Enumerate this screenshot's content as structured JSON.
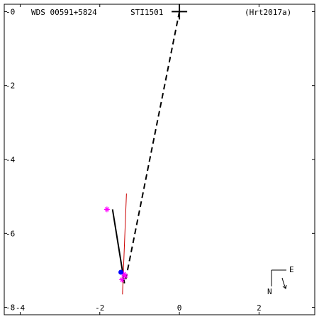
{
  "header": {
    "wds": "WDS 00591+5824",
    "disc": "STI1501",
    "ref": "(Hrt2017a)"
  },
  "compass": {
    "east": "E",
    "north": "N"
  },
  "chart_data": {
    "type": "scatter",
    "title": "",
    "xlabel": "",
    "ylabel": "",
    "xlim": [
      -4.4,
      3.4
    ],
    "ylim": [
      -8.2,
      0.2
    ],
    "x_ticks": [
      -4,
      -2,
      0,
      2
    ],
    "y_ticks": [
      0,
      -2,
      -4,
      -6,
      -8
    ],
    "x_tick_labels": [
      "-4",
      "-2",
      "0",
      "2"
    ],
    "y_tick_labels": [
      "-0",
      "-2",
      "-4",
      "-6",
      "-8"
    ],
    "grid": false,
    "primary": {
      "x": 0,
      "y": 0,
      "marker": "plus"
    },
    "dashed_line": {
      "from": [
        0,
        0
      ],
      "to": [
        -1.36,
        -7.3
      ]
    },
    "motion_line": {
      "from": [
        -1.68,
        -5.35
      ],
      "to": [
        -1.38,
        -7.35
      ]
    },
    "red_line": {
      "from": [
        -1.33,
        -4.92
      ],
      "to": [
        -1.43,
        -7.65
      ]
    },
    "blue_points": [
      {
        "x": -1.47,
        "y": -7.05
      }
    ],
    "magenta_points": [
      {
        "x": -1.82,
        "y": -5.35
      },
      {
        "x": -1.4,
        "y": -7.1
      },
      {
        "x": -1.36,
        "y": -7.15
      },
      {
        "x": -1.44,
        "y": -7.25
      }
    ],
    "colors": {
      "axes": "#000000",
      "dashed": "#000000",
      "motion": "#000000",
      "red": "#cc0000",
      "blue": "#0000ff",
      "magenta": "#ff00ff"
    }
  }
}
